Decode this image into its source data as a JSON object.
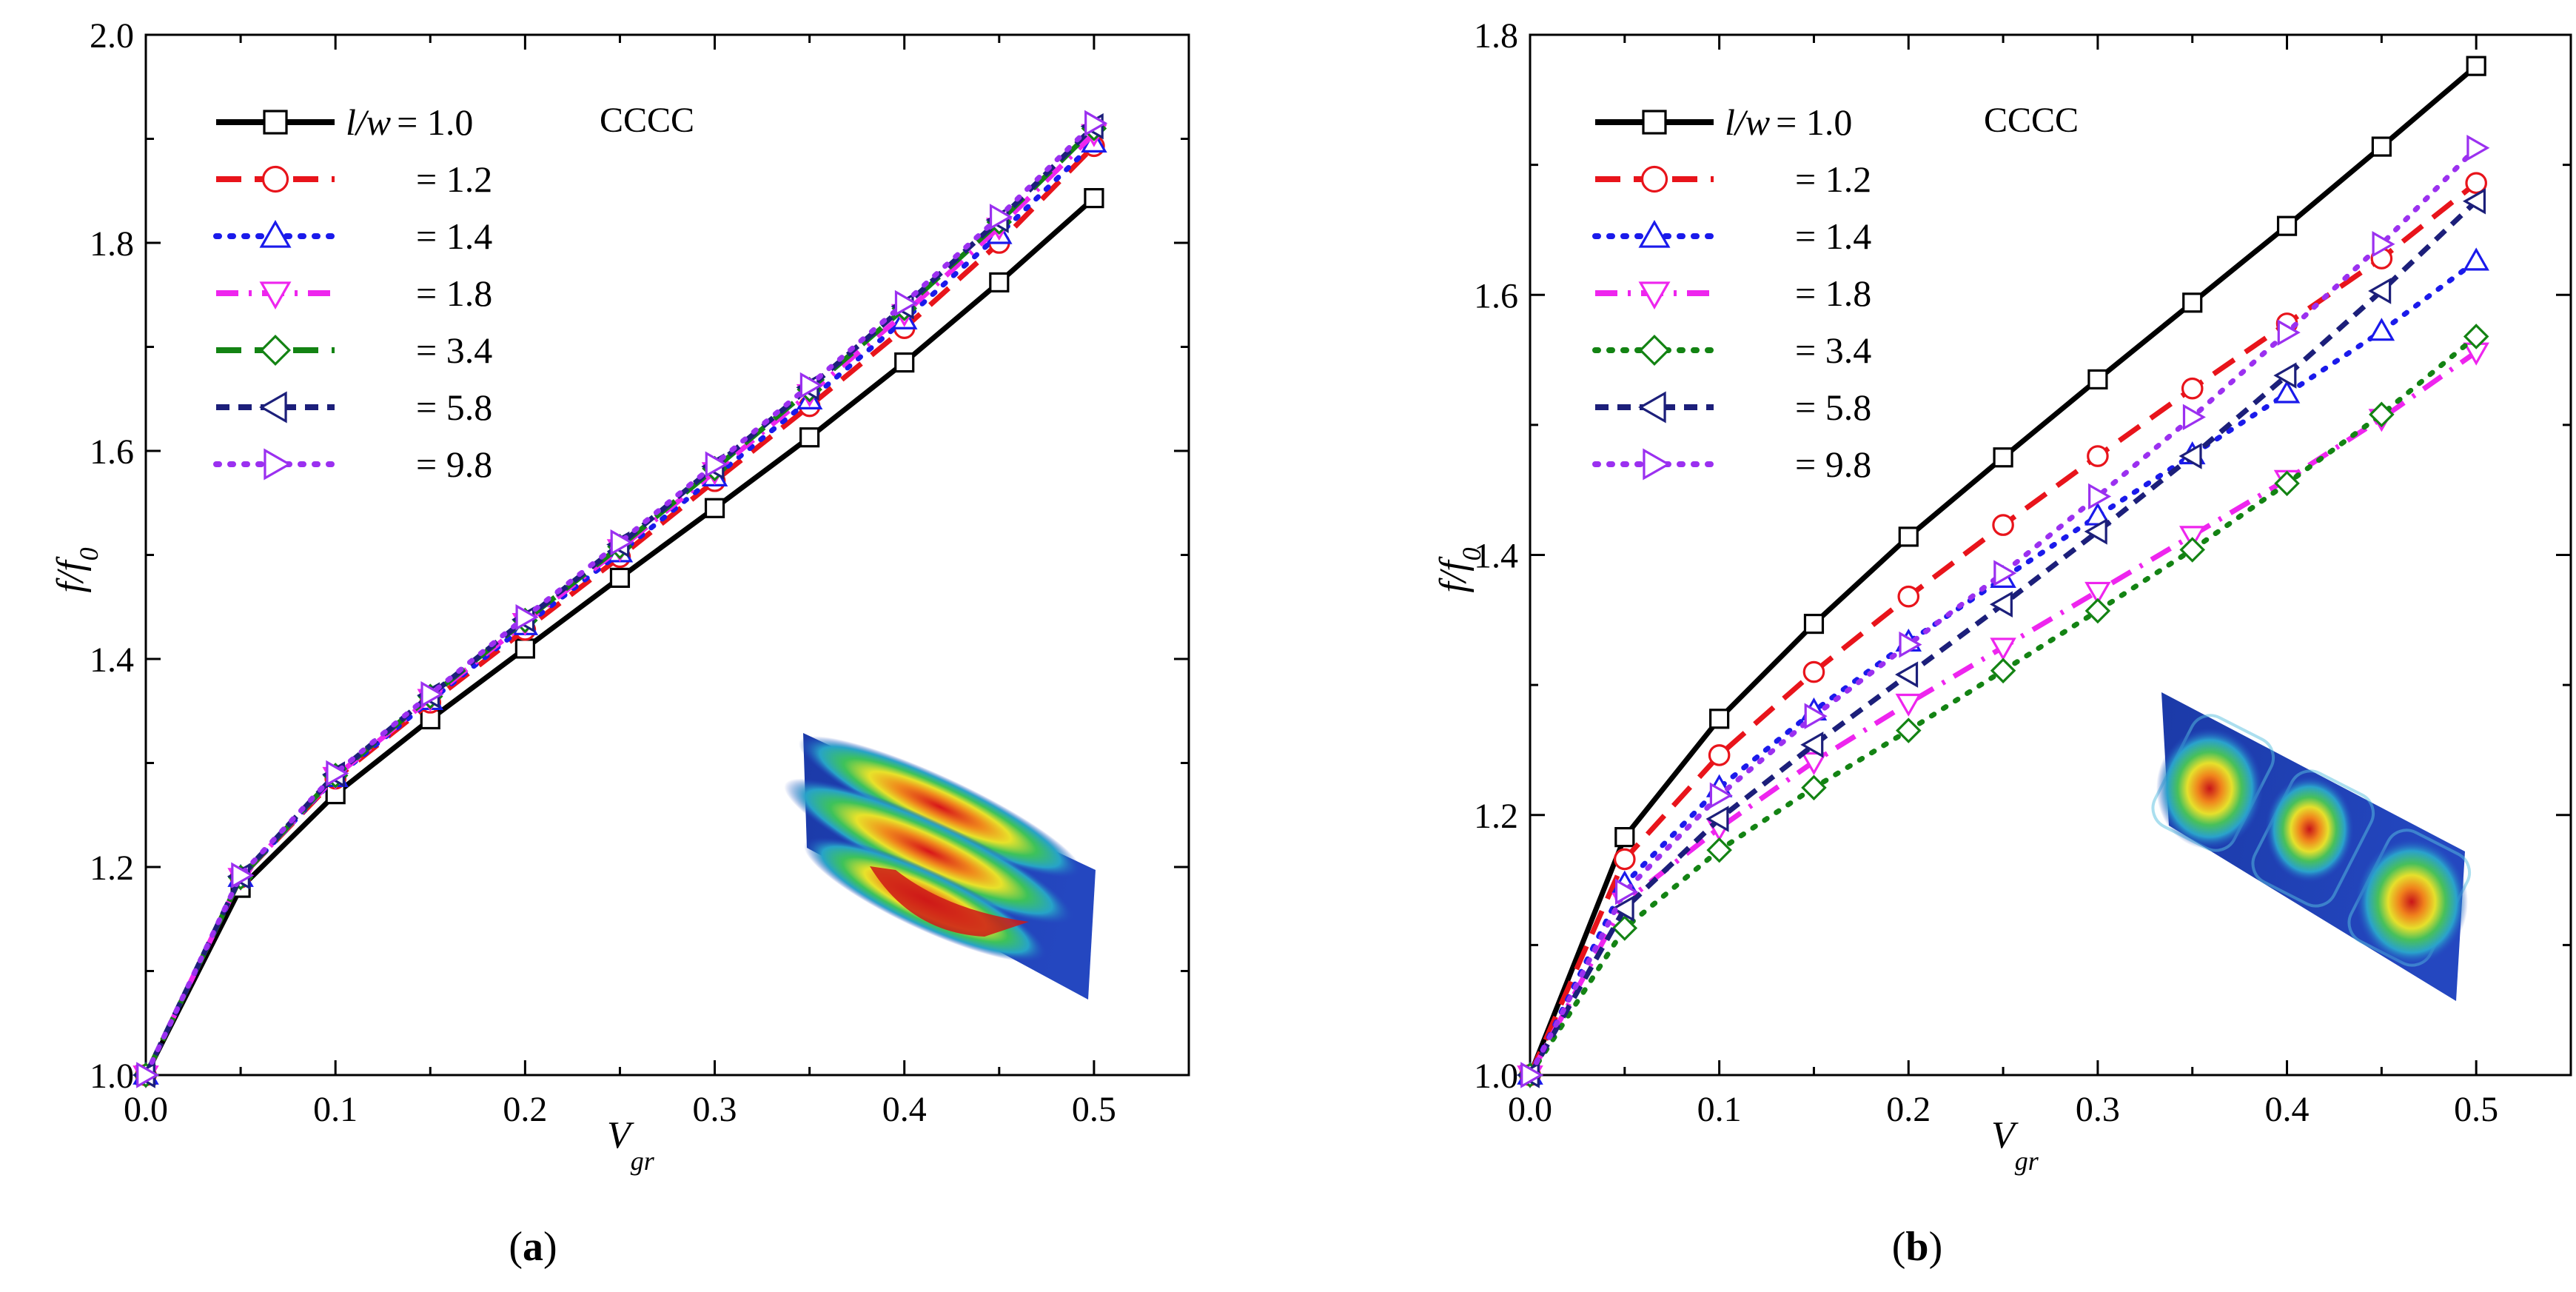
{
  "chart_data": [
    {
      "id": "a",
      "type": "line",
      "panel_label": "(a)",
      "condition_label": "CCCC",
      "legend_header": "l/w",
      "xlabel": "V",
      "xlabel_sub": "gr",
      "ylabel": "f/f",
      "ylabel_sub": "0",
      "xlim": [
        0.0,
        0.55
      ],
      "ylim": [
        1.0,
        2.0
      ],
      "x_ticks": [
        "0.0",
        "0.1",
        "0.2",
        "0.3",
        "0.4",
        "0.5"
      ],
      "y_ticks": [
        "1.0",
        "1.2",
        "1.4",
        "1.6",
        "1.8",
        "2.0"
      ],
      "x": [
        0.0,
        0.05,
        0.1,
        0.15,
        0.2,
        0.25,
        0.3,
        0.35,
        0.4,
        0.45,
        0.5
      ],
      "series": [
        {
          "name": "l/w = 1.0",
          "label": "= 1.0",
          "color": "#000000",
          "marker": "square",
          "dash": "solid",
          "values": [
            1.0,
            1.18,
            1.27,
            1.342,
            1.41,
            1.478,
            1.545,
            1.613,
            1.685,
            1.762,
            1.843
          ]
        },
        {
          "name": "l/w = 1.2",
          "label": "= 1.2",
          "color": "#e8141b",
          "marker": "circle",
          "dash": "dash",
          "values": [
            1.0,
            1.19,
            1.285,
            1.358,
            1.428,
            1.498,
            1.571,
            1.643,
            1.718,
            1.8,
            1.893
          ]
        },
        {
          "name": "l/w = 1.4",
          "label": "= 1.4",
          "color": "#1a1aeb",
          "marker": "triangle-up",
          "dash": "dot",
          "values": [
            1.0,
            1.19,
            1.286,
            1.36,
            1.432,
            1.502,
            1.575,
            1.649,
            1.726,
            1.808,
            1.896
          ]
        },
        {
          "name": "l/w = 1.8",
          "label": "= 1.8",
          "color": "#ee25ee",
          "marker": "triangle-down",
          "dash": "dashdot",
          "values": [
            1.0,
            1.19,
            1.287,
            1.362,
            1.435,
            1.506,
            1.58,
            1.655,
            1.732,
            1.815,
            1.905
          ]
        },
        {
          "name": "l/w = 3.4",
          "label": "= 3.4",
          "color": "#138313",
          "marker": "diamond",
          "dash": "dash",
          "values": [
            1.0,
            1.19,
            1.288,
            1.364,
            1.437,
            1.508,
            1.583,
            1.659,
            1.737,
            1.82,
            1.91
          ]
        },
        {
          "name": "l/w = 5.8",
          "label": "= 5.8",
          "color": "#1c1f7a",
          "marker": "triangle-left",
          "dash": "shortdash",
          "values": [
            1.0,
            1.191,
            1.289,
            1.365,
            1.438,
            1.51,
            1.585,
            1.661,
            1.739,
            1.822,
            1.912
          ]
        },
        {
          "name": "l/w = 9.8",
          "label": "= 9.8",
          "color": "#9b30f0",
          "marker": "triangle-right",
          "dash": "dot",
          "values": [
            1.0,
            1.192,
            1.29,
            1.366,
            1.44,
            1.512,
            1.587,
            1.663,
            1.742,
            1.825,
            1.915
          ]
        }
      ]
    },
    {
      "id": "b",
      "type": "line",
      "panel_label": "(b)",
      "condition_label": "CCCC",
      "legend_header": "l/w",
      "xlabel": "V",
      "xlabel_sub": "gr",
      "ylabel": "f/f",
      "ylabel_sub": "0",
      "xlim": [
        0.0,
        0.55
      ],
      "ylim": [
        1.0,
        1.8
      ],
      "x_ticks": [
        "0.0",
        "0.1",
        "0.2",
        "0.3",
        "0.4",
        "0.5"
      ],
      "y_ticks": [
        "1.0",
        "1.2",
        "1.4",
        "1.6",
        "1.8"
      ],
      "x": [
        0.0,
        0.05,
        0.1,
        0.15,
        0.2,
        0.25,
        0.3,
        0.35,
        0.4,
        0.45,
        0.5
      ],
      "series": [
        {
          "name": "l/w = 1.0",
          "label": "= 1.0",
          "color": "#000000",
          "marker": "square",
          "dash": "solid",
          "values": [
            1.0,
            1.183,
            1.274,
            1.347,
            1.414,
            1.475,
            1.535,
            1.594,
            1.653,
            1.714,
            1.776
          ]
        },
        {
          "name": "l/w = 1.2",
          "label": "= 1.2",
          "color": "#e8141b",
          "marker": "circle",
          "dash": "dash",
          "values": [
            1.0,
            1.166,
            1.246,
            1.31,
            1.368,
            1.423,
            1.476,
            1.528,
            1.578,
            1.628,
            1.686
          ]
        },
        {
          "name": "l/w = 1.4",
          "label": "= 1.4",
          "color": "#1a1aeb",
          "marker": "triangle-up",
          "dash": "dot",
          "values": [
            1.0,
            1.147,
            1.221,
            1.28,
            1.333,
            1.382,
            1.43,
            1.477,
            1.524,
            1.572,
            1.626
          ]
        },
        {
          "name": "l/w = 1.8",
          "label": "= 1.8",
          "color": "#ee25ee",
          "marker": "triangle-down",
          "dash": "dashdot",
          "values": [
            1.0,
            1.133,
            1.19,
            1.241,
            1.286,
            1.329,
            1.372,
            1.415,
            1.458,
            1.505,
            1.556
          ]
        },
        {
          "name": "l/w = 3.4",
          "label": "= 3.4",
          "color": "#138313",
          "marker": "diamond",
          "dash": "dot",
          "values": [
            1.0,
            1.113,
            1.173,
            1.221,
            1.265,
            1.311,
            1.357,
            1.404,
            1.455,
            1.508,
            1.568
          ]
        },
        {
          "name": "l/w = 5.8",
          "label": "= 5.8",
          "color": "#1c1f7a",
          "marker": "triangle-left",
          "dash": "shortdash",
          "values": [
            1.0,
            1.128,
            1.197,
            1.254,
            1.308,
            1.362,
            1.418,
            1.476,
            1.538,
            1.603,
            1.672
          ]
        },
        {
          "name": "l/w = 9.8",
          "label": "= 9.8",
          "color": "#9b30f0",
          "marker": "triangle-right",
          "dash": "dot",
          "values": [
            1.0,
            1.141,
            1.215,
            1.276,
            1.331,
            1.386,
            1.445,
            1.506,
            1.571,
            1.639,
            1.713
          ]
        }
      ]
    }
  ]
}
